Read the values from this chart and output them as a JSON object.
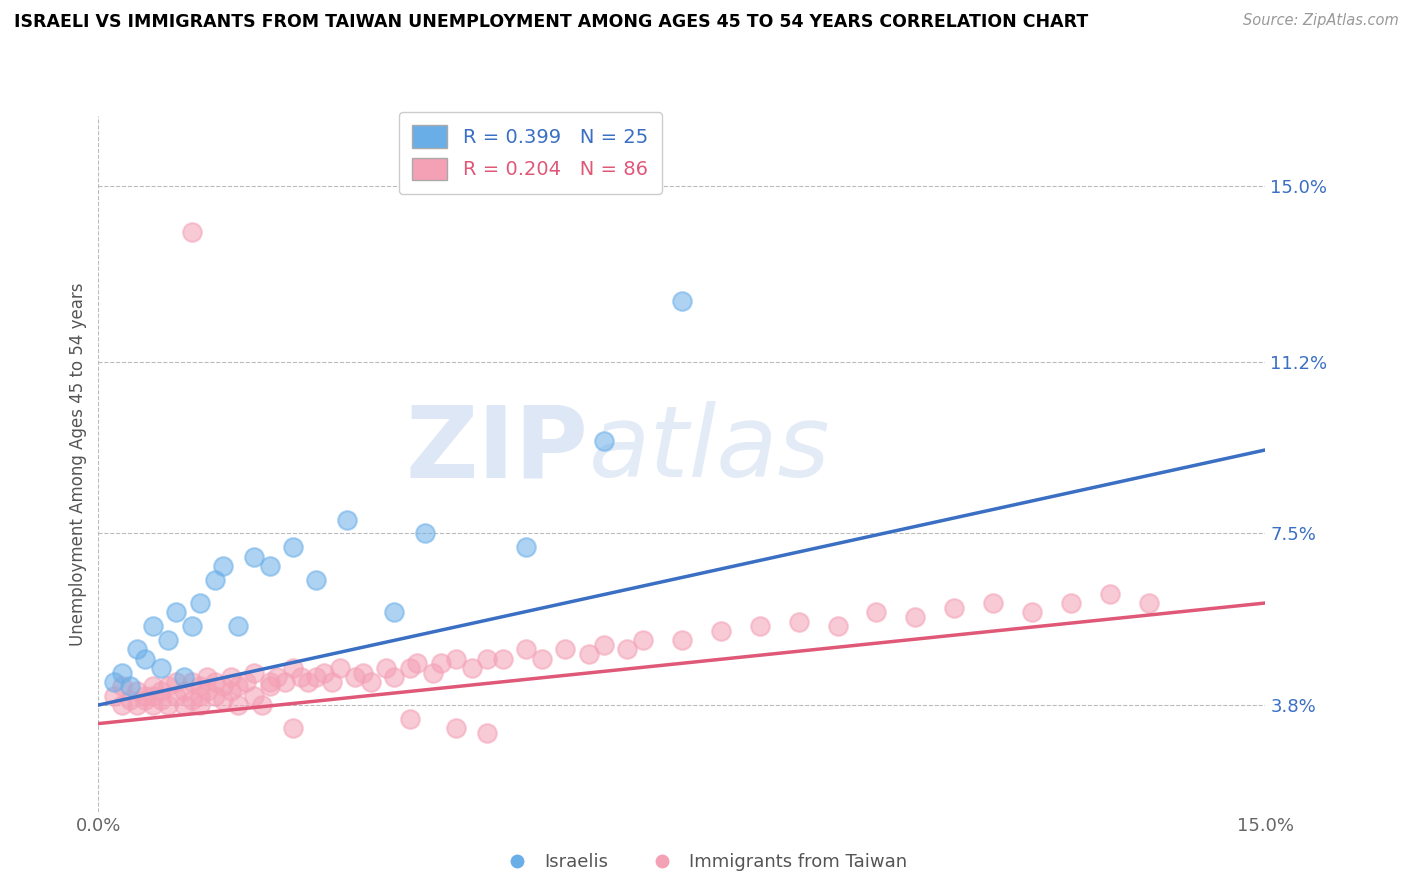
{
  "title": "ISRAELI VS IMMIGRANTS FROM TAIWAN UNEMPLOYMENT AMONG AGES 45 TO 54 YEARS CORRELATION CHART",
  "source": "Source: ZipAtlas.com",
  "ylabel": "Unemployment Among Ages 45 to 54 years",
  "ytick_labels": [
    "3.8%",
    "7.5%",
    "11.2%",
    "15.0%"
  ],
  "ytick_values": [
    0.038,
    0.075,
    0.112,
    0.15
  ],
  "xlim": [
    0.0,
    0.15
  ],
  "ylim": [
    0.015,
    0.165
  ],
  "blue_R": 0.399,
  "blue_N": 25,
  "pink_R": 0.204,
  "pink_N": 86,
  "blue_color": "#6aaee8",
  "pink_color": "#f4a0b5",
  "blue_line_color": "#3a6fc4",
  "pink_line_color": "#e05878",
  "legend_label_blue": "Israelis",
  "legend_label_pink": "Immigrants from Taiwan",
  "watermark_zip": "ZIP",
  "watermark_atlas": "atlas",
  "blue_trend_x": [
    0.0,
    0.15
  ],
  "blue_trend_y": [
    0.038,
    0.093
  ],
  "pink_trend_x": [
    0.0,
    0.15
  ],
  "pink_trend_y": [
    0.034,
    0.06
  ],
  "blue_scatter_x": [
    0.002,
    0.003,
    0.004,
    0.005,
    0.006,
    0.007,
    0.008,
    0.009,
    0.01,
    0.011,
    0.012,
    0.013,
    0.015,
    0.016,
    0.018,
    0.02,
    0.022,
    0.025,
    0.028,
    0.032,
    0.038,
    0.042,
    0.055,
    0.065,
    0.075
  ],
  "blue_scatter_y": [
    0.043,
    0.045,
    0.042,
    0.05,
    0.048,
    0.055,
    0.046,
    0.052,
    0.058,
    0.044,
    0.055,
    0.06,
    0.065,
    0.068,
    0.055,
    0.07,
    0.068,
    0.072,
    0.065,
    0.078,
    0.058,
    0.075,
    0.072,
    0.095,
    0.125
  ],
  "pink_scatter_x": [
    0.002,
    0.003,
    0.003,
    0.004,
    0.005,
    0.005,
    0.006,
    0.006,
    0.007,
    0.007,
    0.007,
    0.008,
    0.008,
    0.009,
    0.009,
    0.01,
    0.01,
    0.011,
    0.011,
    0.012,
    0.012,
    0.013,
    0.013,
    0.013,
    0.014,
    0.014,
    0.015,
    0.015,
    0.016,
    0.016,
    0.017,
    0.017,
    0.018,
    0.018,
    0.019,
    0.02,
    0.02,
    0.021,
    0.022,
    0.022,
    0.023,
    0.024,
    0.025,
    0.026,
    0.027,
    0.028,
    0.029,
    0.03,
    0.031,
    0.033,
    0.034,
    0.035,
    0.037,
    0.038,
    0.04,
    0.041,
    0.043,
    0.044,
    0.046,
    0.048,
    0.05,
    0.052,
    0.055,
    0.057,
    0.06,
    0.063,
    0.065,
    0.068,
    0.07,
    0.075,
    0.08,
    0.085,
    0.09,
    0.095,
    0.1,
    0.105,
    0.11,
    0.115,
    0.12,
    0.125,
    0.13,
    0.135,
    0.04,
    0.025,
    0.046,
    0.05
  ],
  "pink_scatter_y": [
    0.04,
    0.038,
    0.042,
    0.039,
    0.041,
    0.038,
    0.04,
    0.039,
    0.042,
    0.04,
    0.038,
    0.041,
    0.039,
    0.038,
    0.042,
    0.04,
    0.043,
    0.038,
    0.041,
    0.043,
    0.039,
    0.04,
    0.038,
    0.042,
    0.041,
    0.044,
    0.04,
    0.043,
    0.042,
    0.039,
    0.041,
    0.044,
    0.042,
    0.038,
    0.043,
    0.04,
    0.045,
    0.038,
    0.043,
    0.042,
    0.044,
    0.043,
    0.046,
    0.044,
    0.043,
    0.044,
    0.045,
    0.043,
    0.046,
    0.044,
    0.045,
    0.043,
    0.046,
    0.044,
    0.046,
    0.047,
    0.045,
    0.047,
    0.048,
    0.046,
    0.048,
    0.048,
    0.05,
    0.048,
    0.05,
    0.049,
    0.051,
    0.05,
    0.052,
    0.052,
    0.054,
    0.055,
    0.056,
    0.055,
    0.058,
    0.057,
    0.059,
    0.06,
    0.058,
    0.06,
    0.062,
    0.06,
    0.035,
    0.033,
    0.033,
    0.032
  ],
  "pink_outlier_x": [
    0.012
  ],
  "pink_outlier_y": [
    0.14
  ]
}
